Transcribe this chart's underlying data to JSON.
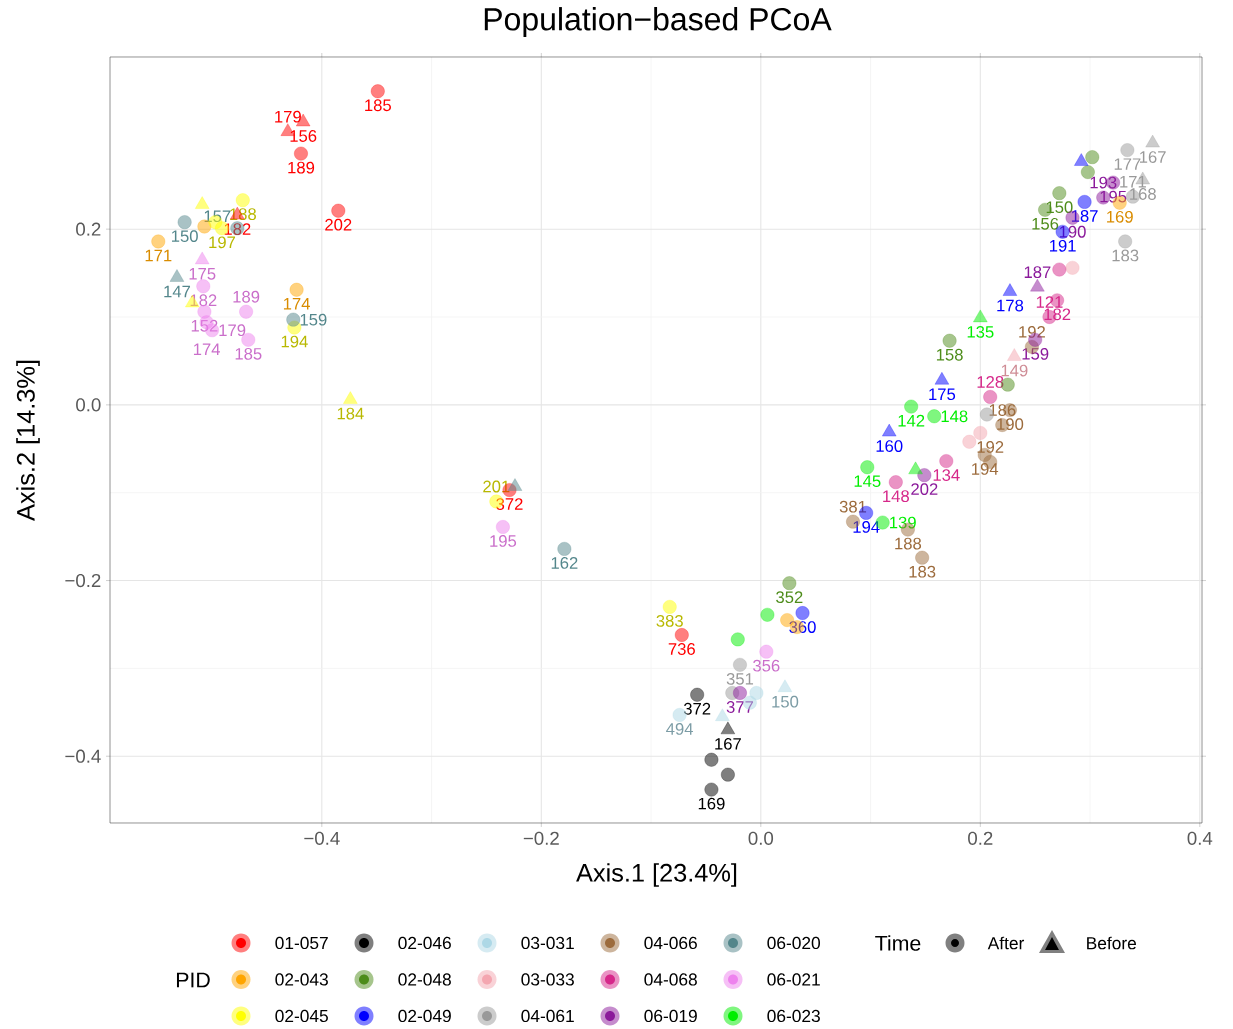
{
  "chart_data": {
    "type": "scatter",
    "title": "Population−based PCoA",
    "xlabel": "Axis.1   [23.4%]",
    "ylabel": "Axis.2   [14.3%]",
    "legend_title": "PID",
    "legend": "bottom",
    "grid": true,
    "xlim": [
      -0.593,
      0.402
    ],
    "ylim": [
      -0.476,
      0.396
    ],
    "xticks": [
      {
        "value": -0.4,
        "label": "−0.4"
      },
      {
        "value": -0.2,
        "label": "−0.2"
      },
      {
        "value": 0.0,
        "label": "0.0"
      },
      {
        "value": 0.2,
        "label": "0.2"
      },
      {
        "value": 0.4,
        "label": "0.4"
      }
    ],
    "yticks": [
      {
        "value": -0.4,
        "label": "−0.4"
      },
      {
        "value": -0.2,
        "label": "−0.2"
      },
      {
        "value": 0.0,
        "label": "0.0"
      },
      {
        "value": 0.2,
        "label": "0.2"
      }
    ],
    "series": [
      {
        "name": "01-057",
        "color": "#ff0000",
        "marker": "circle",
        "x": [
          -0.349,
          -0.419,
          -0.385,
          -0.229,
          -0.072
        ],
        "values": [
          0.357,
          0.286,
          0.221,
          -0.097,
          -0.262
        ]
      },
      {
        "color": "#ff0000",
        "marker": "triangle",
        "x": [
          -0.417,
          -0.431,
          -0.477
        ],
        "values": [
          0.322,
          0.311,
          0.216
        ]
      },
      {
        "name": "02-043",
        "color": "#ffa500",
        "marker": "circle",
        "x": [
          -0.549,
          -0.507,
          -0.423,
          0.327,
          0.024,
          0.033
        ],
        "values": [
          0.186,
          0.203,
          0.131,
          0.23,
          -0.245,
          -0.253
        ]
      },
      {
        "name": "02-045",
        "color": "#ffff00",
        "marker": "circle",
        "x": [
          -0.472,
          -0.497,
          -0.491,
          -0.425,
          -0.241,
          -0.083
        ],
        "values": [
          0.233,
          0.208,
          0.201,
          0.088,
          -0.11,
          -0.23
        ]
      },
      {
        "color": "#ffff00",
        "marker": "triangle",
        "x": [
          -0.509,
          -0.518,
          -0.374
        ],
        "values": [
          0.228,
          0.116,
          0.006
        ]
      },
      {
        "name": "02-046",
        "color": "#000000",
        "marker": "circle",
        "x": [
          -0.058,
          -0.045,
          -0.03,
          -0.045
        ],
        "values": [
          -0.33,
          -0.404,
          -0.421,
          -0.438
        ]
      },
      {
        "color": "#000000",
        "marker": "triangle",
        "x": [
          -0.03
        ],
        "values": [
          -0.37
        ]
      },
      {
        "name": "02-048",
        "color": "#4d8c1a",
        "marker": "circle",
        "x": [
          0.172,
          0.272,
          0.259,
          0.302,
          0.298,
          0.225,
          0.026
        ],
        "values": [
          0.073,
          0.241,
          0.222,
          0.282,
          0.265,
          0.023,
          -0.203
        ]
      },
      {
        "name": "02-049",
        "color": "#0000ff",
        "marker": "circle",
        "x": [
          0.295,
          0.275,
          0.096,
          0.038
        ],
        "values": [
          0.231,
          0.197,
          -0.123,
          -0.237
        ]
      },
      {
        "color": "#0000ff",
        "marker": "triangle",
        "x": [
          0.292,
          0.227,
          0.165,
          0.117
        ],
        "values": [
          0.277,
          0.129,
          0.028,
          -0.031
        ]
      },
      {
        "name": "03-031",
        "color": "#add8e6",
        "marker": "circle",
        "x": [
          -0.004,
          -0.074,
          -0.01
        ],
        "values": [
          -0.328,
          -0.353,
          -0.339
        ]
      },
      {
        "color": "#add8e6",
        "marker": "triangle",
        "x": [
          0.022,
          -0.035
        ],
        "values": [
          -0.322,
          -0.355
        ]
      },
      {
        "name": "03-033",
        "color": "#f4a6b0",
        "marker": "circle",
        "x": [
          0.284,
          0.19,
          0.2
        ],
        "values": [
          0.156,
          -0.042,
          -0.032
        ]
      },
      {
        "color": "#f4a6b0",
        "marker": "triangle",
        "x": [
          0.231
        ],
        "values": [
          0.055
        ]
      },
      {
        "name": "04-061",
        "color": "#999999",
        "marker": "circle",
        "x": [
          0.334,
          0.339,
          0.332,
          0.206,
          -0.019,
          -0.026
        ],
        "values": [
          0.29,
          0.237,
          0.186,
          -0.011,
          -0.296,
          -0.328
        ]
      },
      {
        "color": "#999999",
        "marker": "triangle",
        "x": [
          0.357,
          0.348
        ],
        "values": [
          0.298,
          0.256
        ]
      },
      {
        "name": "04-066",
        "color": "#9c6b3c",
        "marker": "circle",
        "x": [
          0.204,
          0.209,
          0.22,
          0.227,
          0.084,
          0.134,
          0.147,
          0.247
        ],
        "values": [
          -0.057,
          -0.065,
          -0.023,
          -0.006,
          -0.133,
          -0.142,
          -0.174,
          0.066
        ]
      },
      {
        "name": "04-068",
        "color": "#d6288a",
        "marker": "circle",
        "x": [
          0.272,
          0.27,
          0.263,
          0.209,
          0.123,
          0.169
        ],
        "values": [
          0.154,
          0.119,
          0.1,
          0.009,
          -0.088,
          -0.064
        ]
      },
      {
        "name": "06-019",
        "color": "#8b1a9b",
        "marker": "circle",
        "x": [
          0.284,
          0.312,
          0.321,
          0.25,
          0.149,
          -0.019
        ],
        "values": [
          0.213,
          0.236,
          0.253,
          0.074,
          -0.08,
          -0.328
        ]
      },
      {
        "color": "#8b1a9b",
        "marker": "triangle",
        "x": [
          0.252
        ],
        "values": [
          0.134
        ]
      },
      {
        "name": "06-020",
        "color": "#53868b",
        "marker": "circle",
        "x": [
          -0.525,
          -0.477,
          -0.426,
          -0.179
        ],
        "values": [
          0.208,
          0.201,
          0.097,
          -0.164
        ]
      },
      {
        "color": "#53868b",
        "marker": "triangle",
        "x": [
          -0.532,
          -0.224
        ],
        "values": [
          0.145,
          -0.093
        ]
      },
      {
        "name": "06-021",
        "color": "#ee82ee",
        "marker": "circle",
        "x": [
          -0.508,
          -0.507,
          -0.505,
          -0.5,
          -0.469,
          -0.467,
          -0.235,
          0.005
        ],
        "values": [
          0.135,
          0.106,
          0.094,
          0.085,
          0.106,
          0.074,
          -0.139,
          -0.281
        ]
      },
      {
        "color": "#ee82ee",
        "marker": "triangle",
        "x": [
          -0.509
        ],
        "values": [
          0.165
        ]
      },
      {
        "name": "06-023",
        "color": "#00ee00",
        "marker": "circle",
        "x": [
          0.137,
          0.158,
          0.097,
          0.111,
          0.006,
          -0.021
        ],
        "values": [
          -0.002,
          -0.013,
          -0.071,
          -0.134,
          -0.239,
          -0.267
        ]
      },
      {
        "color": "#00ee00",
        "marker": "triangle",
        "x": [
          0.2,
          0.141
        ],
        "values": [
          0.099,
          -0.074
        ]
      }
    ],
    "annotations": [
      "Time",
      "After",
      "Before",
      {
        "text": "185",
        "x": -0.349,
        "y": 0.357
      },
      {
        "text": "189",
        "x": -0.419,
        "y": 0.286
      },
      {
        "text": "202",
        "x": -0.385,
        "y": 0.221
      },
      {
        "text": "372",
        "x": -0.229,
        "y": -0.097
      },
      {
        "text": "736",
        "x": -0.072,
        "y": -0.262
      },
      {
        "text": "156",
        "x": -0.417,
        "y": 0.322
      },
      {
        "text": "179",
        "x": -0.431,
        "y": 0.311
      },
      {
        "text": "182",
        "x": -0.477,
        "y": 0.216
      },
      {
        "text": "171",
        "x": -0.549,
        "y": 0.186
      },
      {
        "text": "174",
        "x": -0.423,
        "y": 0.131
      },
      {
        "text": "169",
        "x": 0.327,
        "y": 0.23
      },
      {
        "text": "188",
        "x": -0.472,
        "y": 0.233
      },
      {
        "text": "197",
        "x": -0.491,
        "y": 0.201
      },
      {
        "text": "194",
        "x": -0.425,
        "y": 0.088
      },
      {
        "text": "201",
        "x": -0.241,
        "y": -0.11
      },
      {
        "text": "383",
        "x": -0.083,
        "y": -0.23
      },
      {
        "text": "184",
        "x": -0.374,
        "y": 0.006
      },
      {
        "text": "372",
        "x": -0.058,
        "y": -0.33
      },
      {
        "text": "169",
        "x": -0.045,
        "y": -0.438
      },
      {
        "text": "167",
        "x": -0.03,
        "y": -0.37
      },
      {
        "text": "158",
        "x": 0.172,
        "y": 0.073
      },
      {
        "text": "150",
        "x": 0.272,
        "y": 0.241
      },
      {
        "text": "156",
        "x": 0.259,
        "y": 0.222
      },
      {
        "text": "352",
        "x": 0.026,
        "y": -0.203
      },
      {
        "text": "187",
        "x": 0.295,
        "y": 0.231
      },
      {
        "text": "191",
        "x": 0.275,
        "y": 0.197
      },
      {
        "text": "194",
        "x": 0.096,
        "y": -0.123
      },
      {
        "text": "360",
        "x": 0.038,
        "y": -0.237
      },
      {
        "text": "178",
        "x": 0.227,
        "y": 0.129
      },
      {
        "text": "175",
        "x": 0.165,
        "y": 0.028
      },
      {
        "text": "160",
        "x": 0.117,
        "y": -0.031
      },
      {
        "text": "494",
        "x": -0.074,
        "y": -0.353
      },
      {
        "text": "150",
        "x": 0.022,
        "y": -0.322
      },
      {
        "text": "149",
        "x": 0.231,
        "y": 0.055
      },
      {
        "text": "177",
        "x": 0.334,
        "y": 0.29
      },
      {
        "text": "171",
        "x": 0.339,
        "y": 0.237
      },
      {
        "text": "183",
        "x": 0.332,
        "y": 0.186
      },
      {
        "text": "351",
        "x": -0.019,
        "y": -0.296
      },
      {
        "text": "167",
        "x": 0.357,
        "y": 0.298
      },
      {
        "text": "168",
        "x": 0.348,
        "y": 0.256
      },
      {
        "text": "194",
        "x": 0.204,
        "y": -0.057
      },
      {
        "text": "192",
        "x": 0.209,
        "y": -0.065
      },
      {
        "text": "186",
        "x": 0.22,
        "y": -0.023
      },
      {
        "text": "190",
        "x": 0.227,
        "y": -0.006
      },
      {
        "text": "381",
        "x": 0.084,
        "y": -0.133
      },
      {
        "text": "188",
        "x": 0.134,
        "y": -0.142
      },
      {
        "text": "183",
        "x": 0.147,
        "y": -0.174
      },
      {
        "text": "192",
        "x": 0.247,
        "y": 0.066
      },
      {
        "text": "182",
        "x": 0.27,
        "y": 0.119
      },
      {
        "text": "121",
        "x": 0.263,
        "y": 0.1
      },
      {
        "text": "128",
        "x": 0.209,
        "y": 0.009
      },
      {
        "text": "148",
        "x": 0.123,
        "y": -0.088
      },
      {
        "text": "134",
        "x": 0.169,
        "y": -0.064
      },
      {
        "text": "190",
        "x": 0.284,
        "y": 0.213
      },
      {
        "text": "193",
        "x": 0.312,
        "y": 0.236
      },
      {
        "text": "195",
        "x": 0.321,
        "y": 0.253
      },
      {
        "text": "159",
        "x": 0.25,
        "y": 0.074
      },
      {
        "text": "202",
        "x": 0.149,
        "y": -0.08
      },
      {
        "text": "377",
        "x": -0.019,
        "y": -0.328
      },
      {
        "text": "187",
        "x": 0.252,
        "y": 0.134
      },
      {
        "text": "150",
        "x": -0.525,
        "y": 0.208
      },
      {
        "text": "157",
        "x": -0.477,
        "y": 0.201
      },
      {
        "text": "159",
        "x": -0.426,
        "y": 0.097
      },
      {
        "text": "162",
        "x": -0.179,
        "y": -0.164
      },
      {
        "text": "147",
        "x": -0.532,
        "y": 0.145
      },
      {
        "text": "182",
        "x": -0.508,
        "y": 0.135
      },
      {
        "text": "152",
        "x": -0.507,
        "y": 0.106
      },
      {
        "text": "174",
        "x": -0.505,
        "y": 0.094
      },
      {
        "text": "179",
        "x": -0.5,
        "y": 0.085
      },
      {
        "text": "189",
        "x": -0.469,
        "y": 0.106
      },
      {
        "text": "185",
        "x": -0.467,
        "y": 0.074
      },
      {
        "text": "195",
        "x": -0.235,
        "y": -0.139
      },
      {
        "text": "356",
        "x": 0.005,
        "y": -0.281
      },
      {
        "text": "175",
        "x": -0.509,
        "y": 0.165
      },
      {
        "text": "142",
        "x": 0.137,
        "y": -0.002
      },
      {
        "text": "148",
        "x": 0.158,
        "y": -0.013
      },
      {
        "text": "145",
        "x": 0.097,
        "y": -0.071
      },
      {
        "text": "139",
        "x": 0.111,
        "y": -0.134
      },
      {
        "text": "135",
        "x": 0.2,
        "y": 0.099
      }
    ]
  }
}
